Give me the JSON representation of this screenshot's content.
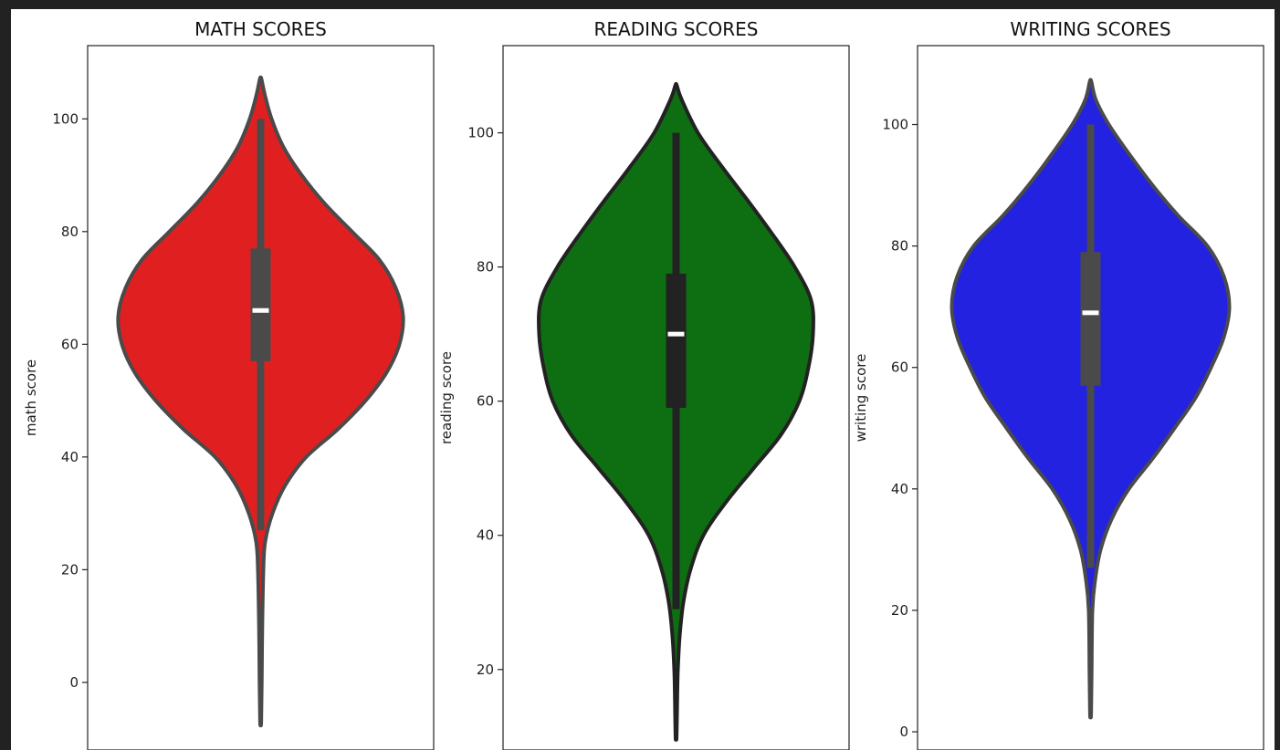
{
  "chart_data": [
    {
      "type": "violin",
      "title": "MATH SCORES",
      "ylabel": "math score",
      "xlabel": "",
      "ylim": [
        -12,
        113
      ],
      "yticks": [
        0,
        20,
        40,
        60,
        80,
        100
      ],
      "fill_color": "#e02020",
      "line_color": "#4a4a4a",
      "box_color": "#4a4a4a",
      "density": [
        {
          "y": -7,
          "w": 0.6
        },
        {
          "y": 0,
          "w": 1.2
        },
        {
          "y": 10,
          "w": 1.8
        },
        {
          "y": 20,
          "w": 3
        },
        {
          "y": 25,
          "w": 5
        },
        {
          "y": 30,
          "w": 13
        },
        {
          "y": 35,
          "w": 27
        },
        {
          "y": 40,
          "w": 50
        },
        {
          "y": 45,
          "w": 85
        },
        {
          "y": 50,
          "w": 115
        },
        {
          "y": 55,
          "w": 138
        },
        {
          "y": 60,
          "w": 152
        },
        {
          "y": 65,
          "w": 156
        },
        {
          "y": 70,
          "w": 148
        },
        {
          "y": 75,
          "w": 130
        },
        {
          "y": 80,
          "w": 100
        },
        {
          "y": 85,
          "w": 70
        },
        {
          "y": 90,
          "w": 45
        },
        {
          "y": 95,
          "w": 25
        },
        {
          "y": 100,
          "w": 12
        },
        {
          "y": 104,
          "w": 5
        },
        {
          "y": 107,
          "w": 1
        }
      ],
      "box": {
        "whisker_low": 27,
        "q1": 57,
        "median": 66,
        "q3": 77,
        "whisker_high": 100
      }
    },
    {
      "type": "violin",
      "title": "READING SCORES",
      "ylabel": "reading score",
      "xlabel": "",
      "ylim": [
        8,
        113
      ],
      "yticks": [
        20,
        40,
        60,
        80,
        100
      ],
      "fill_color": "#0e6e12",
      "line_color": "#222222",
      "box_color": "#222222",
      "density": [
        {
          "y": 10,
          "w": 0.6
        },
        {
          "y": 15,
          "w": 1.2
        },
        {
          "y": 20,
          "w": 2
        },
        {
          "y": 25,
          "w": 4
        },
        {
          "y": 30,
          "w": 8
        },
        {
          "y": 35,
          "w": 16
        },
        {
          "y": 40,
          "w": 30
        },
        {
          "y": 45,
          "w": 55
        },
        {
          "y": 50,
          "w": 85
        },
        {
          "y": 55,
          "w": 115
        },
        {
          "y": 60,
          "w": 135
        },
        {
          "y": 65,
          "w": 145
        },
        {
          "y": 70,
          "w": 150
        },
        {
          "y": 75,
          "w": 148
        },
        {
          "y": 80,
          "w": 130
        },
        {
          "y": 85,
          "w": 105
        },
        {
          "y": 90,
          "w": 78
        },
        {
          "y": 95,
          "w": 50
        },
        {
          "y": 100,
          "w": 24
        },
        {
          "y": 105,
          "w": 6
        },
        {
          "y": 107,
          "w": 1
        }
      ],
      "box": {
        "whisker_low": 29,
        "q1": 59,
        "median": 70,
        "q3": 79,
        "whisker_high": 100
      }
    },
    {
      "type": "violin",
      "title": "WRITING SCORES",
      "ylabel": "writing score",
      "xlabel": "",
      "ylim": [
        -3,
        113
      ],
      "yticks": [
        0,
        20,
        40,
        60,
        80,
        100
      ],
      "fill_color": "#2222e0",
      "line_color": "#4a4a4a",
      "box_color": "#4a4a4a",
      "density": [
        {
          "y": 3,
          "w": 0.6
        },
        {
          "y": 10,
          "w": 1.2
        },
        {
          "y": 20,
          "w": 2
        },
        {
          "y": 25,
          "w": 5
        },
        {
          "y": 30,
          "w": 11
        },
        {
          "y": 35,
          "w": 23
        },
        {
          "y": 40,
          "w": 42
        },
        {
          "y": 45,
          "w": 68
        },
        {
          "y": 50,
          "w": 92
        },
        {
          "y": 55,
          "w": 115
        },
        {
          "y": 60,
          "w": 132
        },
        {
          "y": 65,
          "w": 146
        },
        {
          "y": 70,
          "w": 152
        },
        {
          "y": 75,
          "w": 146
        },
        {
          "y": 80,
          "w": 128
        },
        {
          "y": 85,
          "w": 96
        },
        {
          "y": 90,
          "w": 68
        },
        {
          "y": 95,
          "w": 43
        },
        {
          "y": 100,
          "w": 20
        },
        {
          "y": 104,
          "w": 6
        },
        {
          "y": 107,
          "w": 1
        }
      ],
      "box": {
        "whisker_low": 27,
        "q1": 57,
        "median": 69,
        "q3": 79,
        "whisker_high": 100
      }
    }
  ]
}
